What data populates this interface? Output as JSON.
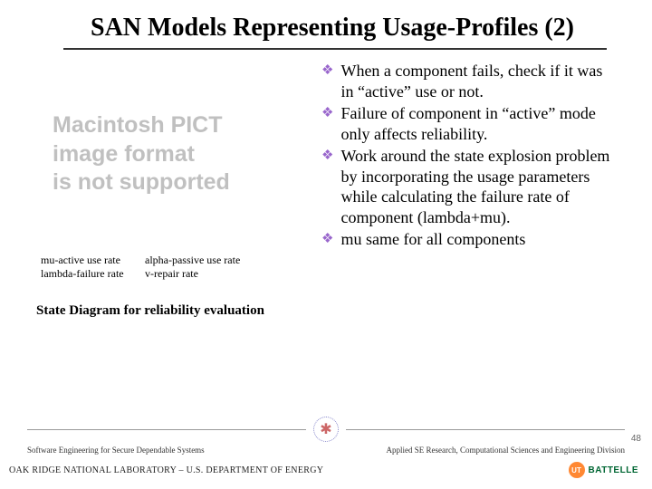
{
  "title": "SAN Models Representing Usage-Profiles (2)",
  "pict": {
    "line1": "Macintosh PICT",
    "line2": "image format",
    "line3": "is not supported"
  },
  "legend": {
    "r1c1": "mu-active use rate",
    "r1c2": "alpha-passive use rate",
    "r2c1": "lambda-failure rate",
    "r2c2": "v-repair rate"
  },
  "caption": "State Diagram for reliability evaluation",
  "bullets": {
    "b1": "When a component fails, check if it was in “active” use or not.",
    "b2": "Failure of component in “active” mode only affects reliability.",
    "b3": "Work around the state explosion problem by incorporating the usage parameters while calculating the failure rate of component (lambda+mu).",
    "b4": "mu same for all components"
  },
  "footer": {
    "left": "Software Engineering for Secure Dependable Systems",
    "right": "Applied SE Research, Computational Sciences and Engineering Division"
  },
  "lab": "OAK RIDGE NATIONAL LABORATORY – U.S. DEPARTMENT OF ENERGY",
  "page": "48",
  "logo": {
    "ut": "UT",
    "battelle": "BATTELLE"
  },
  "colors": {
    "diamond": "#9966cc",
    "pict_text": "#c0c0c0",
    "ut_orange": "#ff8833",
    "ut_green": "#006633"
  }
}
